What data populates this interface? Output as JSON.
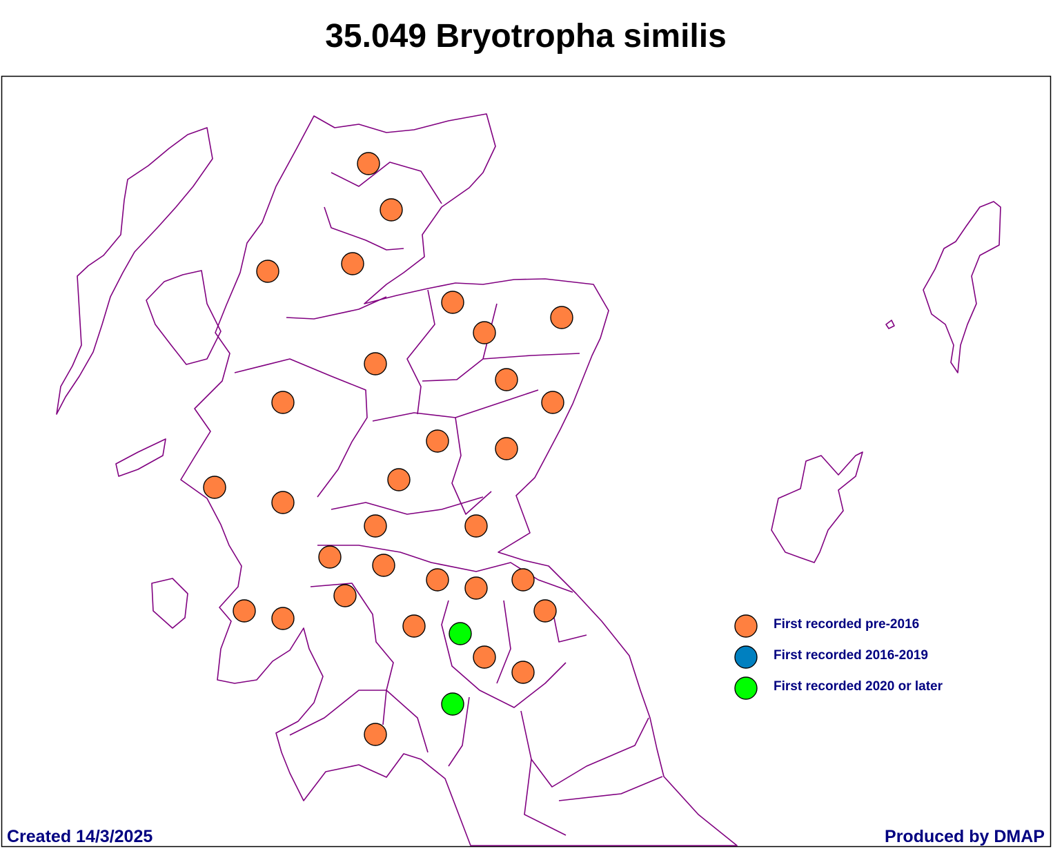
{
  "title": "35.049 Bryotropha similis",
  "legend": [
    {
      "label": "First recorded pre-2016",
      "color": "#ff8040"
    },
    {
      "label": "First recorded 2016-2019",
      "color": "#0080c0"
    },
    {
      "label": "First recorded 2020 or later",
      "color": "#00ff00"
    }
  ],
  "footer": {
    "created": "Created 14/3/2025",
    "produced": "Produced by DMAP"
  }
}
